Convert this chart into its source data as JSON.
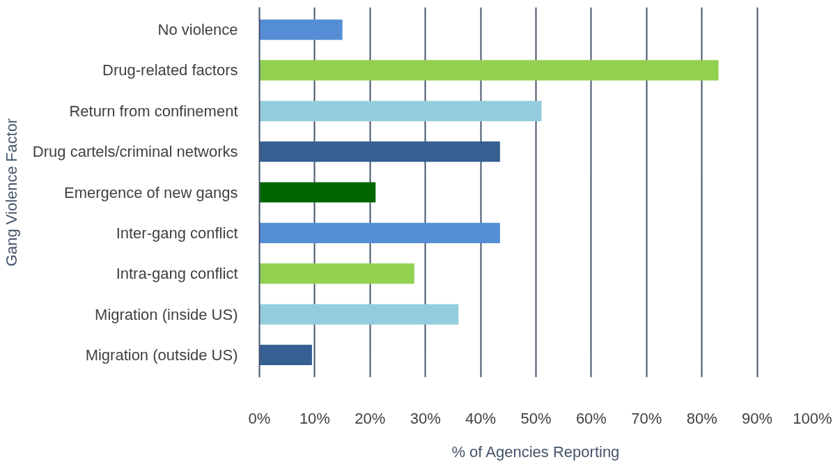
{
  "chart_data": {
    "type": "bar",
    "orientation": "horizontal",
    "xlabel": "% of Agencies Reporting",
    "ylabel": "Gang Violence Factor",
    "categories": [
      "No violence",
      "Drug-related factors",
      "Return from confinement",
      "Drug cartels/criminal networks",
      "Emergence of new gangs",
      "Inter-gang conflict",
      "Intra-gang conflict",
      "Migration (inside US)",
      "Migration (outside US)"
    ],
    "values": [
      15,
      83,
      51,
      43.5,
      21,
      43.5,
      28,
      36,
      9.5
    ],
    "colors": [
      "#558ed5",
      "#92d050",
      "#93cddd",
      "#366092",
      "#006600",
      "#558ed5",
      "#92d050",
      "#93cddd",
      "#366092"
    ],
    "xlim": [
      0,
      100
    ],
    "xticks": [
      {
        "value": 0,
        "label": "0%"
      },
      {
        "value": 10,
        "label": "10%"
      },
      {
        "value": 20,
        "label": "20%"
      },
      {
        "value": 30,
        "label": "30%"
      },
      {
        "value": 40,
        "label": "40%"
      },
      {
        "value": 50,
        "label": "50%"
      },
      {
        "value": 60,
        "label": "60%"
      },
      {
        "value": 70,
        "label": "70%"
      },
      {
        "value": 80,
        "label": "80%"
      },
      {
        "value": 90,
        "label": "90%"
      },
      {
        "value": 100,
        "label": "100%"
      }
    ],
    "grid": "x"
  }
}
